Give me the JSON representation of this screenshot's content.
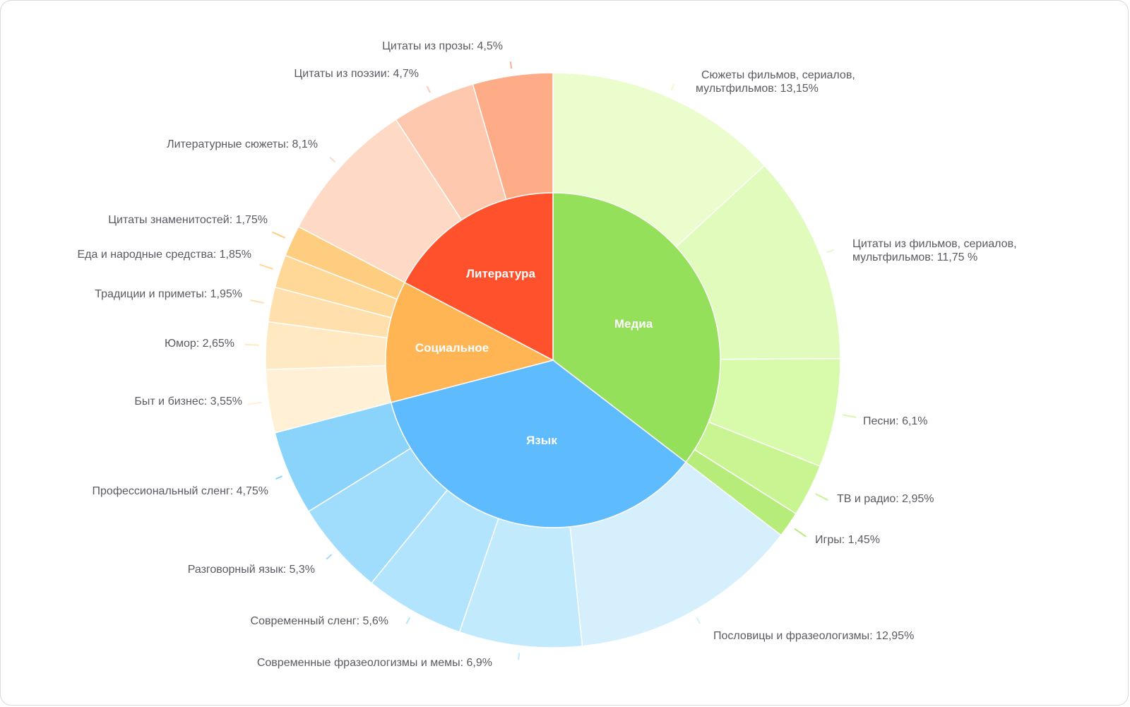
{
  "chart_data": {
    "type": "sunburst",
    "categories": [
      {
        "name": "Медиа",
        "color": "#94e05a",
        "children": [
          {
            "name": "Сюжеты фильмов, сериалов, мультфильмов",
            "value": 13.15,
            "label": [
              "Сюжеты фильмов, сериалов,",
              "мультфильмов: 13,15%"
            ],
            "color": "#ebfccd"
          },
          {
            "name": "Цитаты из фильмов, сериалов, мультфильмов",
            "value": 11.75,
            "label": [
              "Цитаты из фильмов, сериалов,",
              "мультфильмов: 11,75 %"
            ],
            "color": "#e1fbbd"
          },
          {
            "name": "Песни",
            "value": 6.1,
            "label": [
              "Песни: 6,1%"
            ],
            "color": "#d7fbab"
          },
          {
            "name": "ТВ и радио",
            "value": 2.95,
            "label": [
              "ТВ и радио: 2,95%"
            ],
            "color": "#c8f592"
          },
          {
            "name": "Игры",
            "value": 1.45,
            "label": [
              "Игры: 1,45%"
            ],
            "color": "#b6ed7a"
          }
        ]
      },
      {
        "name": "Язык",
        "color": "#5ebbfd",
        "children": [
          {
            "name": "Пословицы и фразеологизмы",
            "value": 12.95,
            "label": [
              "Пословицы и фразеологизмы: 12,95%"
            ],
            "color": "#d5f0fc"
          },
          {
            "name": "Современные фразеологизмы и мемы",
            "value": 6.9,
            "label": [
              "Современные фразеологизмы и мемы: 6,9%"
            ],
            "color": "#c2eafd"
          },
          {
            "name": "Современный сленг",
            "value": 5.6,
            "label": [
              "Современный сленг: 5,6%"
            ],
            "color": "#b2e5fd"
          },
          {
            "name": "Разговорный язык",
            "value": 5.3,
            "label": [
              "Разговорный язык: 5,3%"
            ],
            "color": "#a0ddfc"
          },
          {
            "name": "Профессиональный сленг",
            "value": 4.75,
            "label": [
              "Профессиональный сленг: 4,75%"
            ],
            "color": "#8ad3fb"
          }
        ]
      },
      {
        "name": "Социальное",
        "color": "#ffb554",
        "children": [
          {
            "name": "Быт и бизнес",
            "value": 3.55,
            "label": [
              "Быт и бизнес: 3,55%"
            ],
            "color": "#fff0d6"
          },
          {
            "name": "Юмор",
            "value": 2.65,
            "label": [
              "Юмор: 2,65%"
            ],
            "color": "#ffe9c2"
          },
          {
            "name": "Традиции и приметы",
            "value": 1.95,
            "label": [
              "Традиции и приметы: 1,95%"
            ],
            "color": "#ffe0ad"
          },
          {
            "name": "Еда и народные средства",
            "value": 1.85,
            "label": [
              "Еда и народные средства: 1,85%"
            ],
            "color": "#ffd796"
          },
          {
            "name": "Цитаты знаменитостей",
            "value": 1.75,
            "label": [
              "Цитаты знаменитостей: 1,75%"
            ],
            "color": "#ffcd7f"
          }
        ]
      },
      {
        "name": "Литература",
        "color": "#ff512c",
        "children": [
          {
            "name": "Литературные сюжеты",
            "value": 8.1,
            "label": [
              "Литературные сюжеты: 8,1%"
            ],
            "color": "#fed9c5"
          },
          {
            "name": "Цитаты из поэзии",
            "value": 4.7,
            "label": [
              "Цитаты из поэзии: 4,7%"
            ],
            "color": "#fec8ae"
          },
          {
            "name": "Цитаты из прозы",
            "value": 4.5,
            "label": [
              "Цитаты из прозы: 4,5%"
            ],
            "color": "#feab87"
          }
        ]
      }
    ]
  }
}
